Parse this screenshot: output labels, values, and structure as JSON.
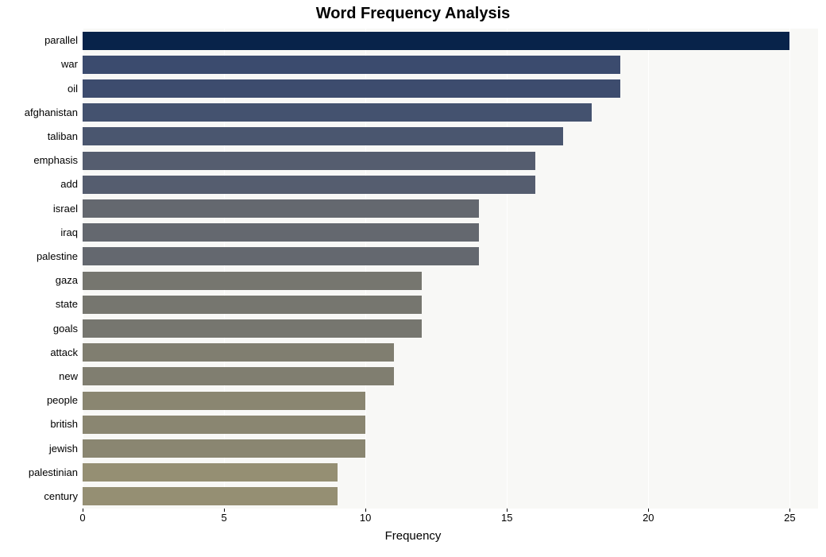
{
  "chart": {
    "type": "bar-horizontal",
    "title": "Word Frequency Analysis",
    "title_fontsize": 20,
    "title_fontweight": 700,
    "xlabel": "Frequency",
    "xlabel_fontsize": 15,
    "background_color": "#ffffff",
    "plot_background": "#f8f8f6",
    "grid_color": "#ffffff",
    "xlim": [
      0,
      26
    ],
    "xtick_step": 5,
    "xticks": [
      0,
      5,
      10,
      15,
      20,
      25
    ],
    "ylabel_fontsize": 13,
    "bar_height_ratio": 0.76,
    "categories": [
      "parallel",
      "war",
      "oil",
      "afghanistan",
      "taliban",
      "emphasis",
      "add",
      "israel",
      "iraq",
      "palestine",
      "gaza",
      "state",
      "goals",
      "attack",
      "new",
      "people",
      "british",
      "jewish",
      "palestinian",
      "century"
    ],
    "values": [
      25,
      19,
      19,
      18,
      17,
      16,
      16,
      14,
      14,
      14,
      12,
      12,
      12,
      11,
      11,
      10,
      10,
      10,
      9,
      9
    ],
    "bar_colors": [
      "#08234a",
      "#3b4b6e",
      "#3d4c6e",
      "#44526f",
      "#4a566f",
      "#555d6f",
      "#555d6f",
      "#64686f",
      "#64686f",
      "#64686f",
      "#76766f",
      "#76766f",
      "#76766f",
      "#807e70",
      "#807e70",
      "#8a8671",
      "#8a8671",
      "#8a8671",
      "#958f73",
      "#958f73"
    ]
  }
}
